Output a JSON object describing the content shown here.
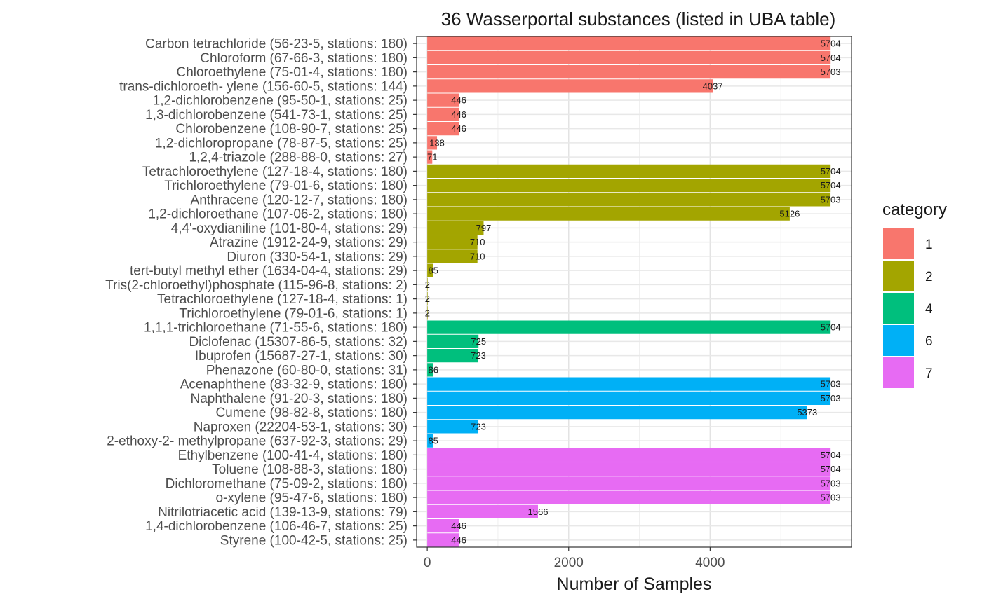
{
  "chart_data": {
    "type": "bar",
    "orientation": "horizontal",
    "title": "36 Wasserportal substances (listed in UBA table)",
    "xlabel": "Number of Samples",
    "ylabel": "",
    "xlim": [
      -150,
      6000
    ],
    "xticks": [
      0,
      2000,
      4000
    ],
    "xtick_labels": [
      "0",
      "2000",
      "4000"
    ],
    "grid": true,
    "legend": {
      "title": "category",
      "position": "right",
      "items": [
        {
          "label": "1",
          "color": "#F8766D"
        },
        {
          "label": "2",
          "color": "#A3A500"
        },
        {
          "label": "4",
          "color": "#00BF7D"
        },
        {
          "label": "6",
          "color": "#00B0F6"
        },
        {
          "label": "7",
          "color": "#E76BF3"
        }
      ]
    },
    "bars": [
      {
        "label": "Carbon tetrachloride (56-23-5, stations: 180)",
        "value": 5704,
        "value_label": "5704",
        "category": "1"
      },
      {
        "label": "Chloroform (67-66-3, stations: 180)",
        "value": 5704,
        "value_label": "5704",
        "category": "1"
      },
      {
        "label": "Chloroethylene (75-01-4, stations: 180)",
        "value": 5703,
        "value_label": "5703",
        "category": "1"
      },
      {
        "label": "trans-dichloroeth- ylene (156-60-5, stations: 144)",
        "value": 4037,
        "value_label": "4037",
        "category": "1"
      },
      {
        "label": "1,2-dichlorobenzene (95-50-1, stations: 25)",
        "value": 446,
        "value_label": "446",
        "category": "1"
      },
      {
        "label": "1,3-dichlorobenzene (541-73-1, stations: 25)",
        "value": 446,
        "value_label": "446",
        "category": "1"
      },
      {
        "label": "Chlorobenzene (108-90-7, stations: 25)",
        "value": 446,
        "value_label": "446",
        "category": "1"
      },
      {
        "label": "1,2-dichloropropane (78-87-5, stations: 25)",
        "value": 138,
        "value_label": "138",
        "category": "1"
      },
      {
        "label": "1,2,4-triazole (288-88-0, stations: 27)",
        "value": 71,
        "value_label": "71",
        "category": "1"
      },
      {
        "label": "Tetrachloroethylene (127-18-4, stations: 180)",
        "value": 5704,
        "value_label": "5704",
        "category": "2"
      },
      {
        "label": "Trichloroethylene (79-01-6, stations: 180)",
        "value": 5704,
        "value_label": "5704",
        "category": "2"
      },
      {
        "label": "Anthracene (120-12-7, stations: 180)",
        "value": 5703,
        "value_label": "5703",
        "category": "2"
      },
      {
        "label": "1,2-dichloroethane (107-06-2, stations: 180)",
        "value": 5126,
        "value_label": "5126",
        "category": "2"
      },
      {
        "label": "4,4'-oxydianiline (101-80-4, stations: 29)",
        "value": 797,
        "value_label": "797",
        "category": "2"
      },
      {
        "label": "Atrazine (1912-24-9, stations: 29)",
        "value": 710,
        "value_label": "710",
        "category": "2"
      },
      {
        "label": "Diuron (330-54-1, stations: 29)",
        "value": 710,
        "value_label": "710",
        "category": "2"
      },
      {
        "label": "tert-butyl methyl ether (1634-04-4, stations: 29)",
        "value": 85,
        "value_label": "85",
        "category": "2"
      },
      {
        "label": "Tris(2-chloroethyl)phosphate (115-96-8, stations: 2)",
        "value": 2,
        "value_label": "2",
        "category": "2"
      },
      {
        "label": "Tetrachloroethylene (127-18-4, stations: 1)",
        "value": 2,
        "value_label": "2",
        "category": "2"
      },
      {
        "label": "Trichloroethylene (79-01-6, stations: 1)",
        "value": 2,
        "value_label": "2",
        "category": "2"
      },
      {
        "label": "1,1,1-trichloroethane (71-55-6, stations: 180)",
        "value": 5704,
        "value_label": "5704",
        "category": "4"
      },
      {
        "label": "Diclofenac (15307-86-5, stations: 32)",
        "value": 725,
        "value_label": "725",
        "category": "4"
      },
      {
        "label": "Ibuprofen (15687-27-1, stations: 30)",
        "value": 723,
        "value_label": "723",
        "category": "4"
      },
      {
        "label": "Phenazone (60-80-0, stations: 31)",
        "value": 86,
        "value_label": "86",
        "category": "4"
      },
      {
        "label": "Acenaphthene (83-32-9, stations: 180)",
        "value": 5703,
        "value_label": "5703",
        "category": "6"
      },
      {
        "label": "Naphthalene (91-20-3, stations: 180)",
        "value": 5703,
        "value_label": "5703",
        "category": "6"
      },
      {
        "label": "Cumene (98-82-8, stations: 180)",
        "value": 5373,
        "value_label": "5373",
        "category": "6"
      },
      {
        "label": "Naproxen (22204-53-1, stations: 30)",
        "value": 723,
        "value_label": "723",
        "category": "6"
      },
      {
        "label": "2-ethoxy-2- methylpropane (637-92-3, stations: 29)",
        "value": 85,
        "value_label": "85",
        "category": "6"
      },
      {
        "label": "Ethylbenzene (100-41-4, stations: 180)",
        "value": 5704,
        "value_label": "5704",
        "category": "7"
      },
      {
        "label": "Toluene (108-88-3, stations: 180)",
        "value": 5704,
        "value_label": "5704",
        "category": "7"
      },
      {
        "label": "Dichloromethane (75-09-2, stations: 180)",
        "value": 5703,
        "value_label": "5703",
        "category": "7"
      },
      {
        "label": "o-xylene (95-47-6, stations: 180)",
        "value": 5703,
        "value_label": "5703",
        "category": "7"
      },
      {
        "label": "Nitrilotriacetic acid (139-13-9, stations: 79)",
        "value": 1566,
        "value_label": "1566",
        "category": "7"
      },
      {
        "label": "1,4-dichlorobenzene (106-46-7, stations: 25)",
        "value": 446,
        "value_label": "446",
        "category": "7"
      },
      {
        "label": "Styrene (100-42-5, stations: 25)",
        "value": 446,
        "value_label": "446",
        "category": "7"
      }
    ]
  }
}
